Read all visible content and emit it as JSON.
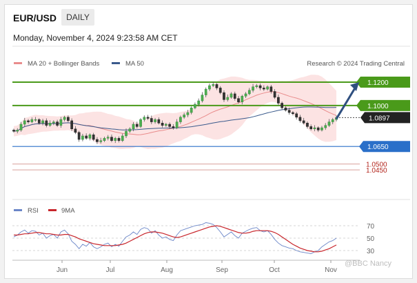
{
  "header": {
    "symbol": "EUR/USD",
    "timeframe": "DAILY",
    "timestamp": "Monday, November 4, 2024 9:23:58 AM CET"
  },
  "legend": {
    "items": [
      {
        "label": "MA 20 + Bollinger Bands",
        "color": "#e98c8c"
      },
      {
        "label": "MA 50",
        "color": "#3a5a8c"
      }
    ],
    "credit": "Research © 2024 Trading Central"
  },
  "rsi_legend": {
    "items": [
      {
        "label": "RSI",
        "color": "#6a86c8"
      },
      {
        "label": "9MA",
        "color": "#c8252b"
      }
    ]
  },
  "watermark": "@BBC Nancy",
  "chart_data": [
    {
      "type": "candlestick",
      "title": "EUR/USD DAILY",
      "ylim": [
        1.025,
        1.13
      ],
      "x_ticks": [
        "Jun",
        "Jul",
        "Aug",
        "Sep",
        "Oct",
        "Nov"
      ],
      "price_levels": [
        {
          "value": 1.12,
          "label": "1.1200",
          "role": "resistance",
          "color": "#4a9a1a"
        },
        {
          "value": 1.1,
          "label": "1.1000",
          "role": "resistance",
          "color": "#4a9a1a"
        },
        {
          "value": 1.0897,
          "label": "1.0897",
          "role": "last",
          "color": "#222222"
        },
        {
          "value": 1.065,
          "label": "1.0650",
          "role": "support",
          "color": "#2a6fc9"
        },
        {
          "value": 1.05,
          "label": "1.0500",
          "role": "support",
          "color": "#b3261e"
        },
        {
          "value": 1.045,
          "label": "1.0450",
          "role": "support",
          "color": "#b3261e"
        }
      ],
      "projection": {
        "from": 1.0897,
        "to": 1.12
      },
      "close_series": [
        1.078,
        1.079,
        1.084,
        1.087,
        1.086,
        1.088,
        1.088,
        1.085,
        1.087,
        1.083,
        1.085,
        1.086,
        1.083,
        1.088,
        1.09,
        1.087,
        1.08,
        1.077,
        1.071,
        1.074,
        1.072,
        1.075,
        1.071,
        1.069,
        1.07,
        1.072,
        1.073,
        1.07,
        1.072,
        1.07,
        1.074,
        1.078,
        1.08,
        1.084,
        1.082,
        1.088,
        1.09,
        1.089,
        1.086,
        1.088,
        1.085,
        1.083,
        1.084,
        1.082,
        1.081,
        1.086,
        1.09,
        1.092,
        1.094,
        1.098,
        1.101,
        1.104,
        1.109,
        1.114,
        1.117,
        1.118,
        1.115,
        1.111,
        1.105,
        1.107,
        1.11,
        1.106,
        1.103,
        1.108,
        1.11,
        1.113,
        1.116,
        1.117,
        1.115,
        1.114,
        1.116,
        1.112,
        1.107,
        1.102,
        1.098,
        1.096,
        1.094,
        1.093,
        1.09,
        1.087,
        1.085,
        1.082,
        1.08,
        1.081,
        1.079,
        1.081,
        1.083,
        1.086,
        1.088,
        1.0897
      ]
    },
    {
      "type": "line",
      "title": "RSI",
      "ylim": [
        20,
        80
      ],
      "y_ticks": [
        70,
        50,
        30
      ],
      "series": [
        {
          "name": "RSI",
          "values": [
            52,
            55,
            60,
            63,
            58,
            62,
            61,
            55,
            58,
            50,
            54,
            56,
            50,
            60,
            63,
            57,
            45,
            40,
            33,
            40,
            37,
            43,
            36,
            33,
            36,
            40,
            42,
            36,
            40,
            37,
            45,
            52,
            55,
            60,
            56,
            64,
            67,
            65,
            58,
            62,
            55,
            50,
            52,
            48,
            46,
            55,
            62,
            64,
            66,
            68,
            70,
            71,
            72,
            75,
            74,
            72,
            67,
            60,
            52,
            56,
            60,
            54,
            50,
            58,
            61,
            64,
            66,
            67,
            62,
            60,
            62,
            56,
            48,
            42,
            38,
            36,
            34,
            33,
            30,
            28,
            27,
            26,
            25,
            28,
            30,
            36,
            40,
            44,
            46,
            50
          ]
        },
        {
          "name": "9MA",
          "values": [
            55,
            55,
            56,
            57,
            57,
            58,
            59,
            59,
            58,
            57,
            57,
            56,
            55,
            55,
            56,
            56,
            54,
            52,
            49,
            47,
            45,
            43,
            41,
            40,
            39,
            38,
            38,
            38,
            38,
            39,
            40,
            42,
            45,
            48,
            51,
            54,
            57,
            59,
            60,
            60,
            59,
            58,
            56,
            54,
            52,
            51,
            52,
            54,
            56,
            58,
            60,
            62,
            64,
            66,
            68,
            69,
            70,
            69,
            67,
            65,
            63,
            61,
            59,
            58,
            58,
            59,
            61,
            62,
            62,
            62,
            62,
            61,
            59,
            56,
            52,
            48,
            44,
            40,
            37,
            34,
            32,
            30,
            29,
            28,
            28,
            29,
            31,
            33,
            36,
            39
          ]
        }
      ]
    }
  ]
}
